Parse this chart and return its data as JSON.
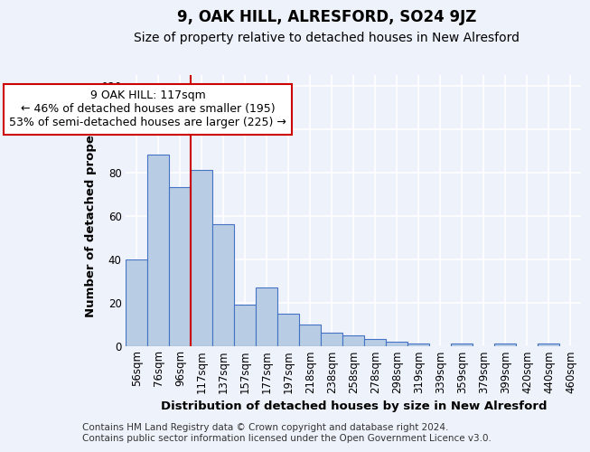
{
  "title": "9, OAK HILL, ALRESFORD, SO24 9JZ",
  "subtitle": "Size of property relative to detached houses in New Alresford",
  "xlabel": "Distribution of detached houses by size in New Alresford",
  "ylabel": "Number of detached properties",
  "categories": [
    "56sqm",
    "76sqm",
    "96sqm",
    "117sqm",
    "137sqm",
    "157sqm",
    "177sqm",
    "197sqm",
    "218sqm",
    "238sqm",
    "258sqm",
    "278sqm",
    "298sqm",
    "319sqm",
    "339sqm",
    "359sqm",
    "379sqm",
    "399sqm",
    "420sqm",
    "440sqm",
    "460sqm"
  ],
  "values": [
    40,
    88,
    73,
    81,
    56,
    19,
    27,
    15,
    10,
    6,
    5,
    3,
    2,
    1,
    0,
    1,
    0,
    1,
    0,
    1,
    0
  ],
  "bar_color": "#b8cce4",
  "bar_edge_color": "#4472c4",
  "ylim": [
    0,
    125
  ],
  "yticks": [
    0,
    20,
    40,
    60,
    80,
    100,
    120
  ],
  "redline_index": 3,
  "annotation_line1": "9 OAK HILL: 117sqm",
  "annotation_line2": "← 46% of detached houses are smaller (195)",
  "annotation_line3": "53% of semi-detached houses are larger (225) →",
  "annotation_box_color": "#ffffff",
  "annotation_box_edge": "#cc0000",
  "footer_line1": "Contains HM Land Registry data © Crown copyright and database right 2024.",
  "footer_line2": "Contains public sector information licensed under the Open Government Licence v3.0.",
  "background_color": "#eef2fa",
  "grid_color": "#ffffff",
  "title_fontsize": 12,
  "subtitle_fontsize": 10,
  "axis_label_fontsize": 9.5,
  "tick_fontsize": 8.5,
  "annotation_fontsize": 9,
  "footer_fontsize": 7.5
}
